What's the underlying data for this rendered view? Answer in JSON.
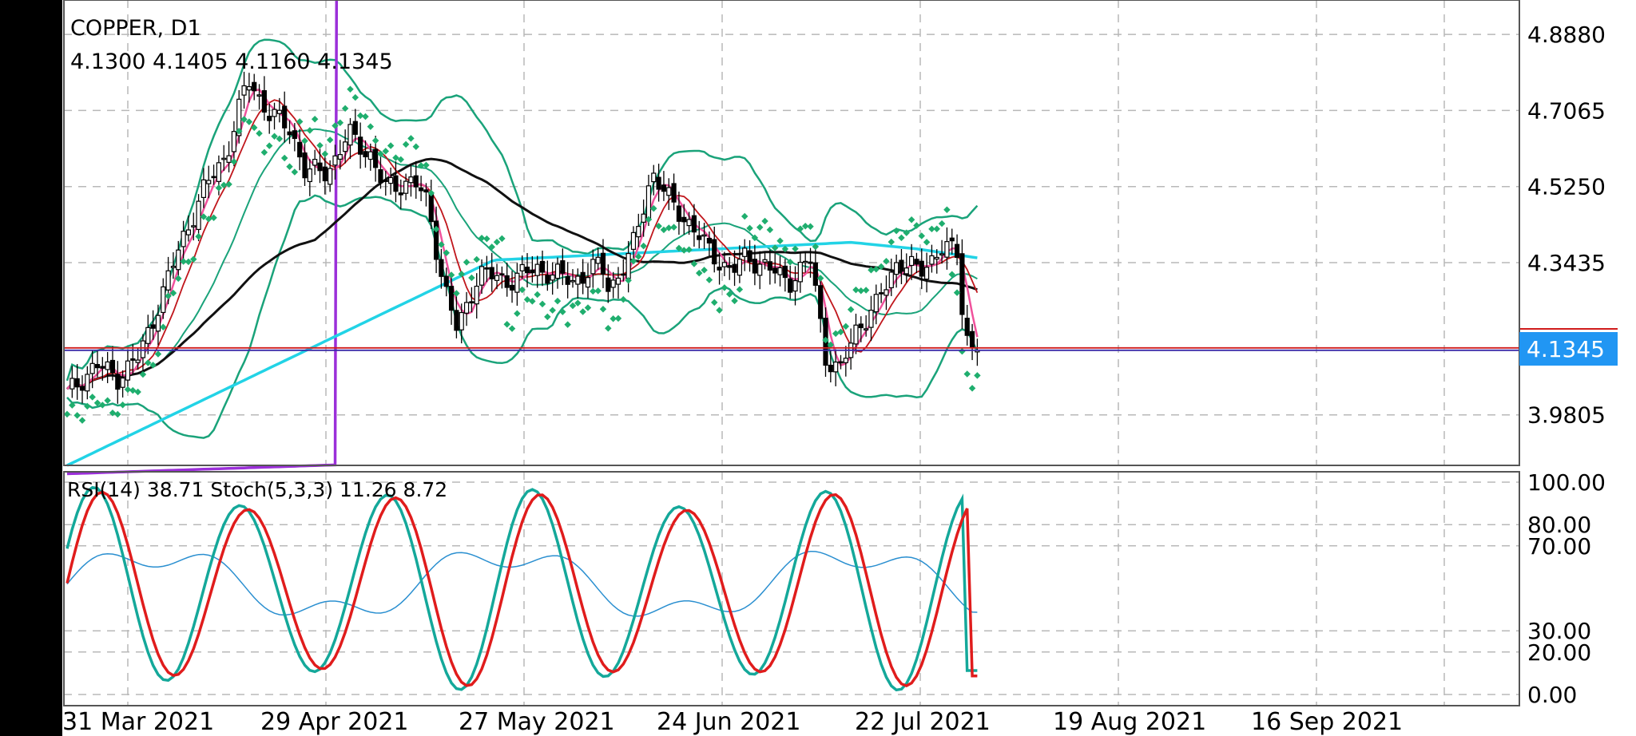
{
  "chart_data": {
    "type": "candlestick",
    "symbol": "COPPER",
    "timeframe": "D1",
    "title": "COPPER, D1",
    "ohlc": {
      "open": "4.1300",
      "high": "4.1405",
      "low": "4.1160",
      "close": "4.1345"
    },
    "ohlc_text": "4.1300 4.1405 4.1160 4.1345",
    "current_price": "4.1345",
    "price_ticks": [
      "4.8880",
      "4.7065",
      "4.5250",
      "4.3435",
      "3.9805"
    ],
    "price_tick_values": [
      4.888,
      4.7065,
      4.525,
      4.3435,
      3.9805
    ],
    "price_range": [
      3.86,
      4.97
    ],
    "date_ticks": [
      "31 Mar 2021",
      "29 Apr 2021",
      "27 May 2021",
      "24 Jun 2021",
      "22 Jul 2021",
      "19 Aug 2021",
      "16 Sep 2021"
    ],
    "indicator_header": "RSI(14) 38.71 Stoch(5,3,3) 11.26 8.72",
    "oscillator_ticks": [
      "100.00",
      "80.00",
      "70.00",
      "30.00",
      "20.00",
      "0.00"
    ],
    "oscillator_tick_values": [
      100,
      80,
      70,
      30,
      20,
      0
    ],
    "indicators": {
      "rsi": {
        "name": "RSI(14)",
        "value": 38.71
      },
      "stochastic": {
        "name": "Stoch(5,3,3)",
        "main": 11.26,
        "signal": 8.72
      }
    },
    "grid": true,
    "colors": {
      "background": "#ffffff",
      "bollinger": "#1aa37a",
      "sar": "#1fae6e",
      "ma_fast": "#f0529c",
      "ma_mid": "#c0161c",
      "ma_50": "#111111",
      "ma_100": "#22d3e6",
      "ma_200": "#9b2fd9",
      "price_line": "#d01c1c",
      "current_line": "#3a2aa8",
      "price_label_bg": "#2196f3",
      "rsi": "#2a8fd0",
      "stoch_main": "#14a89a",
      "stoch_signal": "#e01c1c",
      "grid": "#b8b8b8"
    }
  }
}
